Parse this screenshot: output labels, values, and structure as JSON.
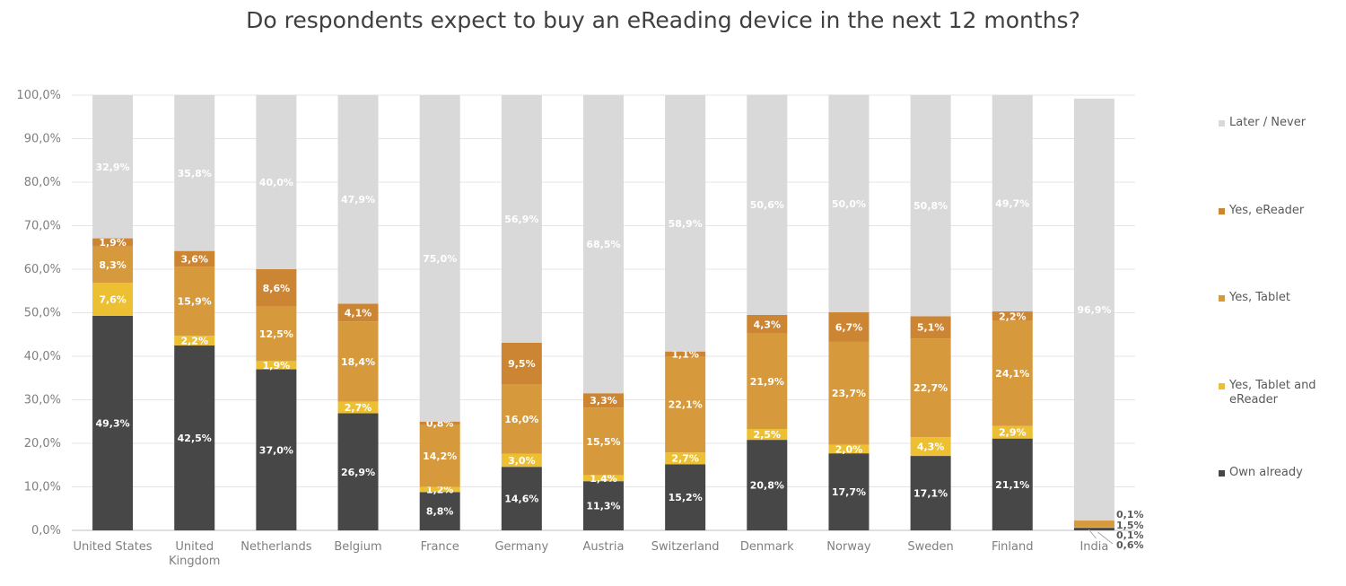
{
  "chart_data": {
    "type": "bar",
    "stacked": true,
    "title": "Do respondents expect to buy an eReading device in the next 12 months?",
    "categories": [
      "United States",
      "United Kingdom",
      "Netherlands",
      "Belgium",
      "France",
      "Germany",
      "Austria",
      "Switzerland",
      "Denmark",
      "Norway",
      "Sweden",
      "Finland",
      "India"
    ],
    "category_label_lines": [
      [
        "United States"
      ],
      [
        "United",
        "Kingdom"
      ],
      [
        "Netherlands"
      ],
      [
        "Belgium"
      ],
      [
        "France"
      ],
      [
        "Germany"
      ],
      [
        "Austria"
      ],
      [
        "Switzerland"
      ],
      [
        "Denmark"
      ],
      [
        "Norway"
      ],
      [
        "Sweden"
      ],
      [
        "Finland"
      ],
      [
        "India"
      ]
    ],
    "ylim": [
      0,
      100
    ],
    "y_ticks": [
      "0,0%",
      "10,0%",
      "20,0%",
      "30,0%",
      "40,0%",
      "50,0%",
      "60,0%",
      "70,0%",
      "80,0%",
      "90,0%",
      "100,0%"
    ],
    "grid": true,
    "legend_position": "right",
    "series": [
      {
        "name": "Own already",
        "color": "#474747",
        "values": [
          49.3,
          42.5,
          37.0,
          26.9,
          8.8,
          14.6,
          11.3,
          15.2,
          20.8,
          17.7,
          17.1,
          21.1,
          0.6
        ],
        "labels": [
          "49,3%",
          "42,5%",
          "37,0%",
          "26,9%",
          "8,8%",
          "14,6%",
          "11,3%",
          "15,2%",
          "20,8%",
          "17,7%",
          "17,1%",
          "21,1%",
          "0,6%"
        ]
      },
      {
        "name": "Yes, Tablet and eReader",
        "color": "#EDC034",
        "values": [
          7.6,
          2.2,
          1.9,
          2.7,
          1.2,
          3.0,
          1.4,
          2.7,
          2.5,
          2.0,
          4.3,
          2.9,
          0.1
        ],
        "labels": [
          "7,6%",
          "2,2%",
          "1,9%",
          "2,7%",
          "1,2%",
          "3,0%",
          "1,4%",
          "2,7%",
          "2,5%",
          "2,0%",
          "4,3%",
          "2,9%",
          "0,1%"
        ]
      },
      {
        "name": "Yes, Tablet",
        "color": "#D69A3C",
        "values": [
          8.3,
          15.9,
          12.5,
          18.4,
          14.2,
          16.0,
          15.5,
          22.1,
          21.9,
          23.7,
          22.7,
          24.1,
          1.5
        ],
        "labels": [
          "8,3%",
          "15,9%",
          "12,5%",
          "18,4%",
          "14,2%",
          "16,0%",
          "15,5%",
          "22,1%",
          "21,9%",
          "23,7%",
          "22,7%",
          "24,1%",
          "1,5%"
        ]
      },
      {
        "name": "Yes, eReader",
        "color": "#CC8533",
        "values": [
          1.9,
          3.6,
          8.6,
          4.1,
          0.8,
          9.5,
          3.3,
          1.1,
          4.3,
          6.7,
          5.1,
          2.2,
          0.1
        ],
        "labels": [
          "1,9%",
          "3,6%",
          "8,6%",
          "4,1%",
          "0,8%",
          "9,5%",
          "3,3%",
          "1,1%",
          "4,3%",
          "6,7%",
          "5,1%",
          "2,2%",
          "0,1%"
        ]
      },
      {
        "name": "Later / Never",
        "color": "#D9D9D9",
        "values": [
          32.9,
          35.8,
          40.0,
          47.9,
          75.0,
          56.9,
          68.5,
          58.9,
          50.6,
          50.0,
          50.8,
          49.7,
          96.9
        ],
        "labels": [
          "32,9%",
          "35,8%",
          "40,0%",
          "47,9%",
          "75,0%",
          "56,9%",
          "68,5%",
          "58,9%",
          "50,6%",
          "50,0%",
          "50,8%",
          "49,7%",
          "96,9%"
        ]
      }
    ],
    "legend_order": [
      "Later / Never",
      "Yes, eReader",
      "Yes, Tablet",
      "Yes, Tablet and eReader",
      "Own already"
    ],
    "legend_label_lines": {
      "Later / Never": [
        "Later / Never"
      ],
      "Yes, eReader": [
        "Yes, eReader"
      ],
      "Yes, Tablet": [
        "Yes, Tablet"
      ],
      "Yes, Tablet and eReader": [
        "Yes, Tablet and",
        "eReader"
      ],
      "Own already": [
        "Own already"
      ]
    }
  }
}
